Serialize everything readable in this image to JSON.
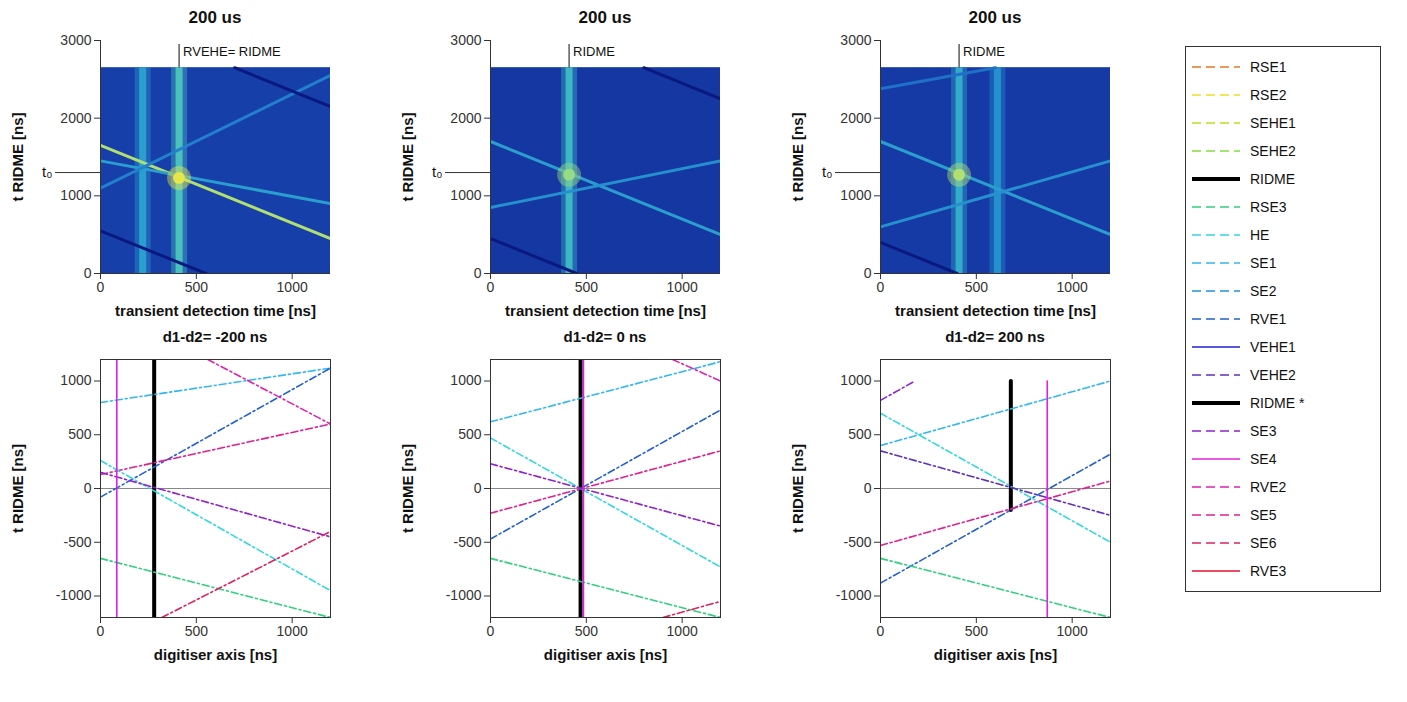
{
  "chart_data": [
    {
      "type": "heatmap",
      "title": "200 us",
      "x_label": "transient detection time [ns]",
      "y_label": "t RIDME [ns]",
      "xlim": [
        0,
        1200
      ],
      "ylim": [
        0,
        3000
      ],
      "xticks": [
        0,
        500,
        1000
      ],
      "yticks": [
        0,
        1000,
        2000,
        3000
      ],
      "color_range": [
        0,
        1
      ],
      "extent": {
        "x": [
          0,
          1200
        ],
        "y": [
          0,
          2650
        ]
      },
      "background": 0.18,
      "bands": [
        {
          "x": 220,
          "intensity": 0.5
        },
        {
          "x": 410,
          "intensity": 0.65
        }
      ],
      "lines": [
        {
          "x": [
            0,
            1200
          ],
          "values": [
            1650,
            450
          ],
          "intensity": 0.9
        },
        {
          "x": [
            0,
            1200
          ],
          "values": [
            1450,
            900
          ],
          "intensity": 0.5
        },
        {
          "x": [
            0,
            1200
          ],
          "values": [
            1100,
            2550
          ],
          "intensity": 0.4
        },
        {
          "x": [
            700,
            1200
          ],
          "values": [
            2650,
            2150
          ],
          "intensity": 0.02
        },
        {
          "x": [
            0,
            550
          ],
          "values": [
            550,
            0
          ],
          "intensity": 0.02
        }
      ],
      "spot": {
        "x": 410,
        "y": 1230,
        "intensity": 1
      },
      "annotations": [
        {
          "text": "RVEHE= RIDME",
          "x": 410,
          "y": [
            2650,
            2950
          ]
        }
      ],
      "marker_label": {
        "text": "t₀",
        "y": 1300
      }
    },
    {
      "type": "heatmap",
      "title": "200 us",
      "x_label": "transient detection time [ns]",
      "y_label": "t RIDME [ns]",
      "xlim": [
        0,
        1200
      ],
      "ylim": [
        0,
        3000
      ],
      "xticks": [
        0,
        500,
        1000
      ],
      "yticks": [
        0,
        1000,
        2000,
        3000
      ],
      "color_range": [
        0,
        1
      ],
      "extent": {
        "x": [
          0,
          1200
        ],
        "y": [
          0,
          2650
        ]
      },
      "background": 0.15,
      "bands": [
        {
          "x": 410,
          "intensity": 0.6
        }
      ],
      "lines": [
        {
          "x": [
            0,
            1200
          ],
          "values": [
            1700,
            500
          ],
          "intensity": 0.5
        },
        {
          "x": [
            0,
            1200
          ],
          "values": [
            850,
            1450
          ],
          "intensity": 0.45
        },
        {
          "x": [
            0,
            450
          ],
          "values": [
            450,
            0
          ],
          "intensity": 0.02
        },
        {
          "x": [
            800,
            1200
          ],
          "values": [
            2650,
            2250
          ],
          "intensity": 0.02
        }
      ],
      "spot": {
        "x": 410,
        "y": 1270,
        "intensity": 0.85
      },
      "annotations": [
        {
          "text": "RIDME",
          "x": 410,
          "y": [
            2650,
            2950
          ]
        }
      ],
      "marker_label": {
        "text": "t₀",
        "y": 1300
      }
    },
    {
      "type": "heatmap",
      "title": "200 us",
      "x_label": "transient detection time [ns]",
      "y_label": "t RIDME [ns]",
      "xlim": [
        0,
        1200
      ],
      "ylim": [
        0,
        3000
      ],
      "xticks": [
        0,
        500,
        1000
      ],
      "yticks": [
        0,
        1000,
        2000,
        3000
      ],
      "color_range": [
        0,
        1
      ],
      "extent": {
        "x": [
          0,
          1200
        ],
        "y": [
          0,
          2650
        ]
      },
      "background": 0.16,
      "bands": [
        {
          "x": 410,
          "intensity": 0.55
        },
        {
          "x": 610,
          "intensity": 0.45
        }
      ],
      "lines": [
        {
          "x": [
            0,
            1200
          ],
          "values": [
            1700,
            500
          ],
          "intensity": 0.5
        },
        {
          "x": [
            0,
            1200
          ],
          "values": [
            600,
            1450
          ],
          "intensity": 0.45
        },
        {
          "x": [
            0,
            600
          ],
          "values": [
            2380,
            2650
          ],
          "intensity": 0.35
        },
        {
          "x": [
            0,
            400
          ],
          "values": [
            400,
            0
          ],
          "intensity": 0.02
        }
      ],
      "spot": {
        "x": 410,
        "y": 1270,
        "intensity": 0.9
      },
      "annotations": [
        {
          "text": "RIDME",
          "x": 410,
          "y": [
            2650,
            2950
          ]
        }
      ],
      "marker_label": {
        "text": "t₀",
        "y": 1300
      }
    },
    {
      "type": "line",
      "title": "d1-d2= -200 ns",
      "x_label": "digitiser axis [ns]",
      "y_label": "t RIDME [ns]",
      "xlim": [
        0,
        1200
      ],
      "ylim": [
        -1200,
        1200
      ],
      "xticks": [
        0,
        500,
        1000
      ],
      "yticks": [
        -1000,
        -500,
        0,
        500,
        1000
      ],
      "hline": 0,
      "series": [
        {
          "name": "SE1",
          "x": [
            0,
            1200
          ],
          "values": [
            800,
            1120
          ]
        },
        {
          "name": "RVE1",
          "x": [
            0,
            1200
          ],
          "values": [
            -80,
            1120
          ]
        },
        {
          "name": "SE5",
          "x": [
            0,
            1200
          ],
          "values": [
            130,
            600
          ]
        },
        {
          "name": "RVE2",
          "x": [
            560,
            1200
          ],
          "values": [
            1200,
            600
          ]
        },
        {
          "name": "HE",
          "x": [
            0,
            1200
          ],
          "values": [
            260,
            -950
          ]
        },
        {
          "name": "SE3",
          "x": [
            0,
            1200
          ],
          "values": [
            150,
            -450
          ]
        },
        {
          "name": "RSE3",
          "x": [
            0,
            1200
          ],
          "values": [
            -650,
            -1200
          ]
        },
        {
          "name": "SE6",
          "x": [
            320,
            1200
          ],
          "values": [
            -1200,
            -400
          ]
        },
        {
          "name": "SE4",
          "x": [
            85,
            85
          ],
          "values": [
            -1200,
            1200
          ]
        },
        {
          "name": "RIDME",
          "x": [
            280,
            280
          ],
          "values": [
            -1200,
            1200
          ]
        }
      ]
    },
    {
      "type": "line",
      "title": "d1-d2= 0 ns",
      "x_label": "digitiser axis [ns]",
      "y_label": "t RIDME [ns]",
      "xlim": [
        0,
        1200
      ],
      "ylim": [
        -1200,
        1200
      ],
      "xticks": [
        0,
        500,
        1000
      ],
      "yticks": [
        -1000,
        -500,
        0,
        500,
        1000
      ],
      "hline": 0,
      "series": [
        {
          "name": "SE1",
          "x": [
            0,
            1200
          ],
          "values": [
            620,
            1180
          ]
        },
        {
          "name": "RVE1",
          "x": [
            0,
            1200
          ],
          "values": [
            -470,
            730
          ]
        },
        {
          "name": "SE5",
          "x": [
            0,
            1200
          ],
          "values": [
            -230,
            350
          ]
        },
        {
          "name": "HE",
          "x": [
            0,
            1200
          ],
          "values": [
            470,
            -730
          ]
        },
        {
          "name": "SE3",
          "x": [
            0,
            1200
          ],
          "values": [
            230,
            -350
          ]
        },
        {
          "name": "RSE3",
          "x": [
            0,
            1200
          ],
          "values": [
            -650,
            -1200
          ]
        },
        {
          "name": "SE6",
          "x": [
            900,
            1200
          ],
          "values": [
            -1200,
            -1050
          ]
        },
        {
          "name": "RVE2",
          "x": [
            950,
            1200
          ],
          "values": [
            1200,
            1000
          ]
        },
        {
          "name": "RIDME",
          "x": [
            470,
            470
          ],
          "values": [
            -1200,
            1200
          ]
        },
        {
          "name": "SE4",
          "x": [
            485,
            485
          ],
          "values": [
            -1200,
            1200
          ]
        }
      ]
    },
    {
      "type": "line",
      "title": "d1-d2= 200 ns",
      "x_label": "digitiser axis [ns]",
      "y_label": "t RIDME [ns]",
      "xlim": [
        0,
        1200
      ],
      "ylim": [
        -1200,
        1200
      ],
      "xticks": [
        0,
        500,
        1000
      ],
      "yticks": [
        -1000,
        -500,
        0,
        500,
        1000
      ],
      "hline": 0,
      "series": [
        {
          "name": "SE1",
          "x": [
            0,
            1200
          ],
          "values": [
            400,
            1000
          ]
        },
        {
          "name": "HE",
          "x": [
            0,
            1200
          ],
          "values": [
            700,
            -500
          ]
        },
        {
          "name": "VEHE2",
          "x": [
            0,
            1200
          ],
          "values": [
            350,
            -250
          ]
        },
        {
          "name": "SE3",
          "x": [
            0,
            180
          ],
          "values": [
            820,
            1000
          ]
        },
        {
          "name": "RVE1",
          "x": [
            0,
            1200
          ],
          "values": [
            -880,
            320
          ]
        },
        {
          "name": "SE5",
          "x": [
            0,
            1200
          ],
          "values": [
            -530,
            70
          ]
        },
        {
          "name": "RSE3",
          "x": [
            0,
            1200
          ],
          "values": [
            -650,
            -1200
          ]
        },
        {
          "name": "RIDME",
          "x": [
            680,
            680
          ],
          "values": [
            -200,
            1000
          ]
        },
        {
          "name": "SE4",
          "x": [
            870,
            870
          ],
          "values": [
            -1200,
            1000
          ]
        }
      ]
    },
    {
      "type": "legend",
      "legend": "right",
      "series": [
        {
          "name": "RSE1",
          "color": "#e8781e",
          "line_style": "dashed"
        },
        {
          "name": "RSE2",
          "color": "#efe020",
          "line_style": "dashed"
        },
        {
          "name": "SEHE1",
          "color": "#b8e020",
          "line_style": "dashed"
        },
        {
          "name": "SEHE2",
          "color": "#80e040",
          "line_style": "dashed"
        },
        {
          "name": "RIDME",
          "color": "#000000",
          "line_style": "thick"
        },
        {
          "name": "RSE3",
          "color": "#30d080",
          "line_style": "dashed"
        },
        {
          "name": "HE",
          "color": "#30d8e0",
          "line_style": "dashed"
        },
        {
          "name": "SE1",
          "color": "#30b8f0",
          "line_style": "dashed"
        },
        {
          "name": "SE2",
          "color": "#2090e0",
          "line_style": "dashed"
        },
        {
          "name": "RVE1",
          "color": "#2060d0",
          "line_style": "dashed"
        },
        {
          "name": "VEHE1",
          "color": "#2020d0",
          "line_style": "solid"
        },
        {
          "name": "VEHE2",
          "color": "#6030c0",
          "line_style": "dashed"
        },
        {
          "name": "RIDME *",
          "color": "#000000",
          "line_style": "thick"
        },
        {
          "name": "SE3",
          "color": "#9020d0",
          "line_style": "dashed"
        },
        {
          "name": "SE4",
          "color": "#e020e0",
          "line_style": "solid"
        },
        {
          "name": "RVE2",
          "color": "#e020b0",
          "line_style": "dashed"
        },
        {
          "name": "SE5",
          "color": "#e02090",
          "line_style": "dashed"
        },
        {
          "name": "SE6",
          "color": "#e02060",
          "line_style": "dashed"
        },
        {
          "name": "RVE3",
          "color": "#e01030",
          "line_style": "solid"
        }
      ]
    }
  ]
}
